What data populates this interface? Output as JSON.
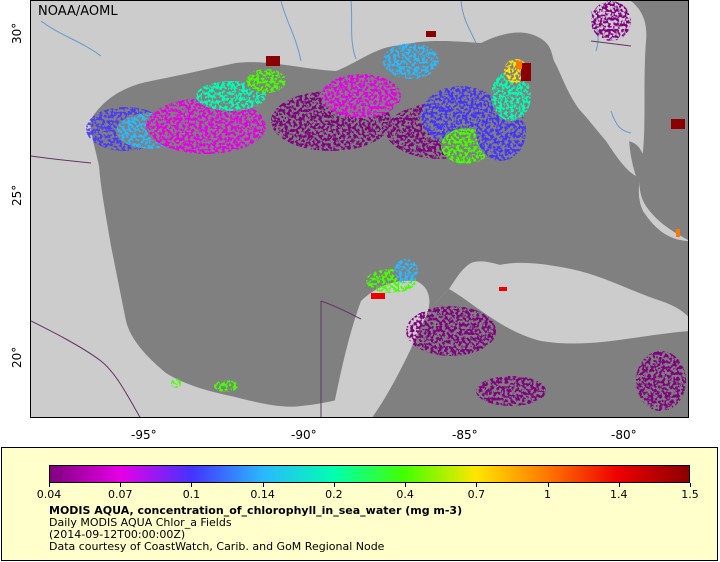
{
  "map": {
    "credit": "NOAA/AOML",
    "x_ticks": [
      "-95°",
      "-90°",
      "-85°",
      "-80°"
    ],
    "y_ticks": [
      "30°",
      "25°",
      "20°"
    ],
    "colors": {
      "land": "#cccccc",
      "water": "#808080",
      "border": "#663366",
      "river": "#6699cc"
    }
  },
  "legend": {
    "title": "MODIS AQUA, concentration_of_chlorophyll_in_sea_water (mg m-3)",
    "subtitle": "Daily MODIS AQUA Chlor_a Fields",
    "date": "(2014-09-12T00:00:00Z)",
    "courtesy": "Data courtesy of CoastWatch, Carib. and GoM Regional Node",
    "scale_labels": [
      "0.04",
      "0.07",
      "0.1",
      "0.14",
      "0.2",
      "0.4",
      "0.7",
      "1",
      "1.4",
      "1.5"
    ],
    "scale_colors": [
      "#800080",
      "#e600e6",
      "#4433ff",
      "#2ab8ff",
      "#00ffb0",
      "#44ff00",
      "#ffe600",
      "#ff7700",
      "#ee0000",
      "#8b0000"
    ]
  }
}
